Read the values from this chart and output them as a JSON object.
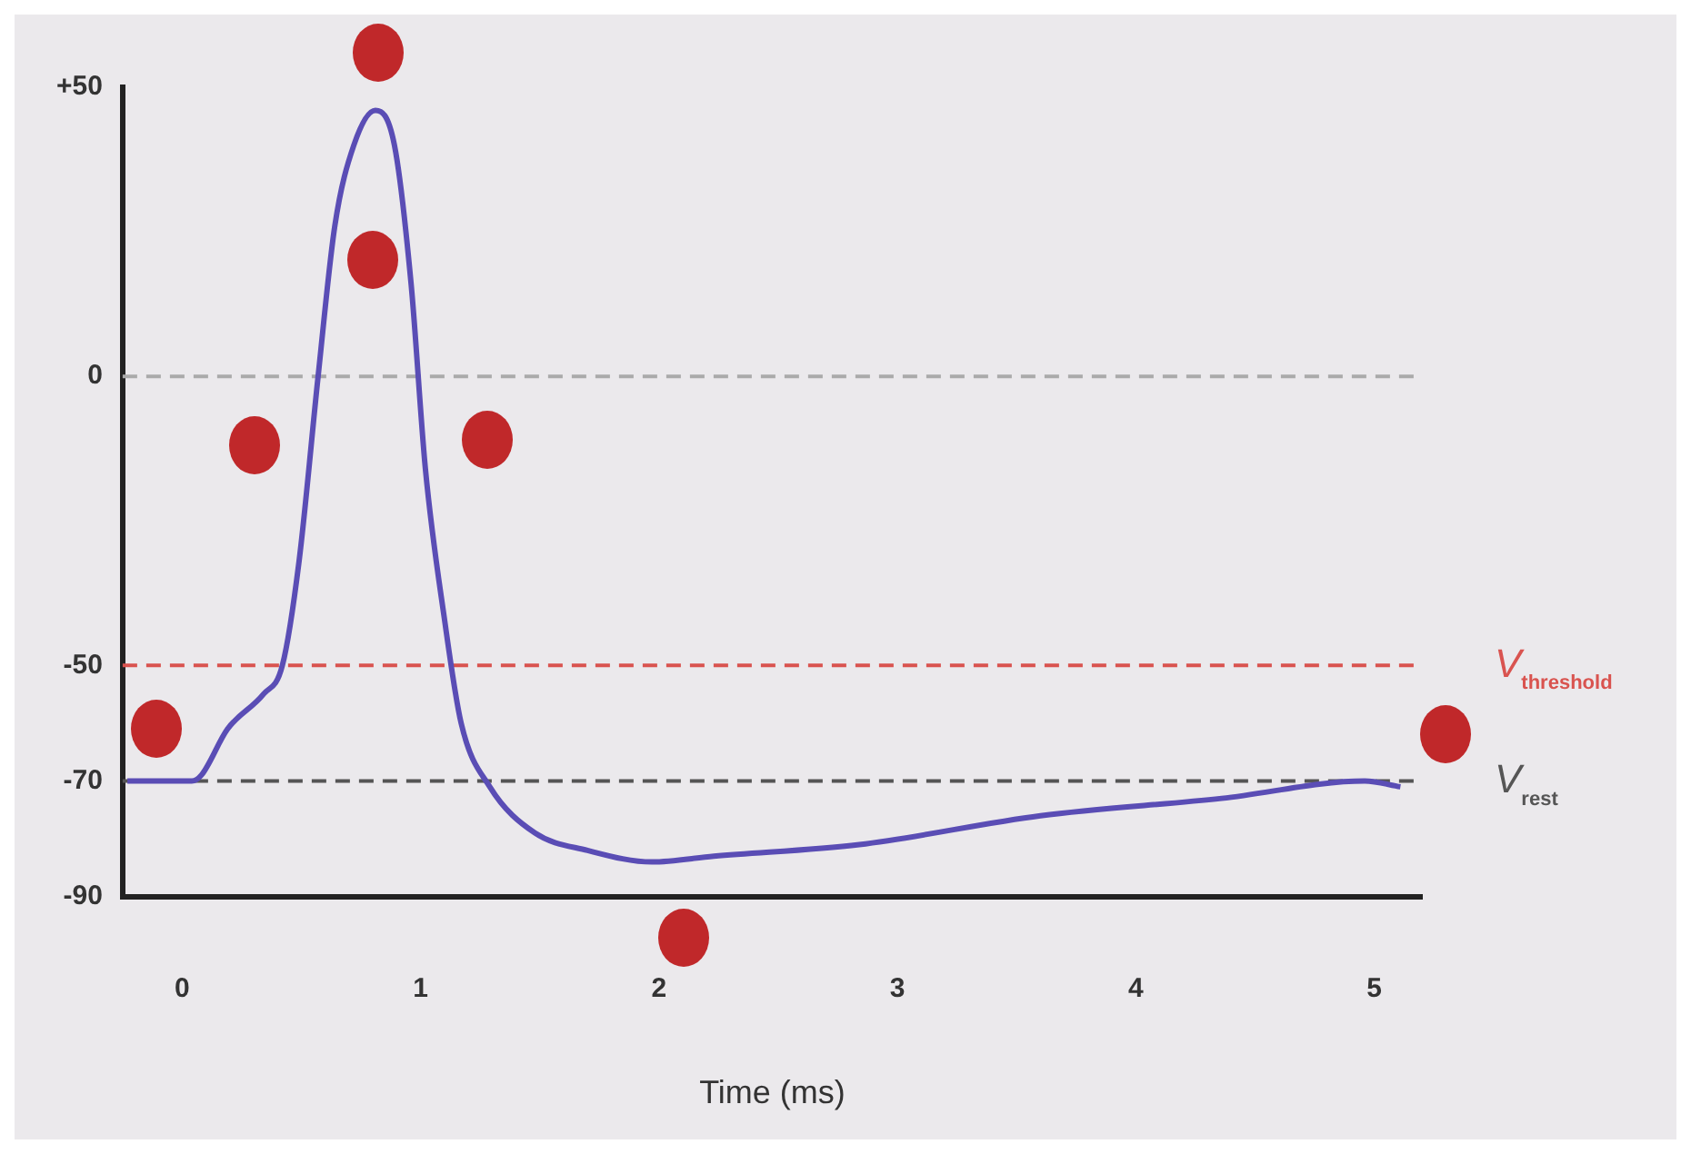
{
  "chart_data": {
    "type": "line",
    "xlabel": "Time (ms)",
    "xlim": [
      -0.25,
      5.2
    ],
    "xticks": [
      0,
      1,
      2,
      3,
      4,
      5
    ],
    "ylim": [
      -90,
      50
    ],
    "yticks": [
      {
        "value": 50,
        "label": "+50"
      },
      0,
      -50,
      -70,
      -90
    ],
    "grid": false,
    "legend": false,
    "marker": "none",
    "line_style": "solid",
    "series": [
      {
        "color": "#5a4db5",
        "x": [
          -0.23,
          0.04,
          0.08,
          0.19,
          0.34,
          0.42,
          0.49,
          0.57,
          0.64,
          0.72,
          0.81,
          0.89,
          0.96,
          1.02,
          1.1,
          1.17,
          1.29,
          1.48,
          1.7,
          1.97,
          2.23,
          2.84,
          3.6,
          4.36,
          4.96,
          5.11
        ],
        "values": [
          -70,
          -70,
          -69,
          -61,
          -55,
          -50,
          -32,
          0,
          26,
          40,
          46,
          40,
          16,
          -16,
          -42,
          -60,
          -71,
          -79,
          -82,
          -84,
          -83,
          -81,
          -76,
          -73,
          -70,
          -71
        ]
      }
    ],
    "ref_lines": [
      {
        "axis": "y",
        "value": 0,
        "label": null,
        "color": "#aaaaaa",
        "line_style": "dashed"
      },
      {
        "axis": "y",
        "value": -50,
        "label": "V$_{threshold}$",
        "color": "#d9534f",
        "line_style": "dashed"
      },
      {
        "axis": "y",
        "value": -70,
        "label": "V$_{rest}$",
        "color": "#555555",
        "line_style": "dashed"
      }
    ]
  }
}
